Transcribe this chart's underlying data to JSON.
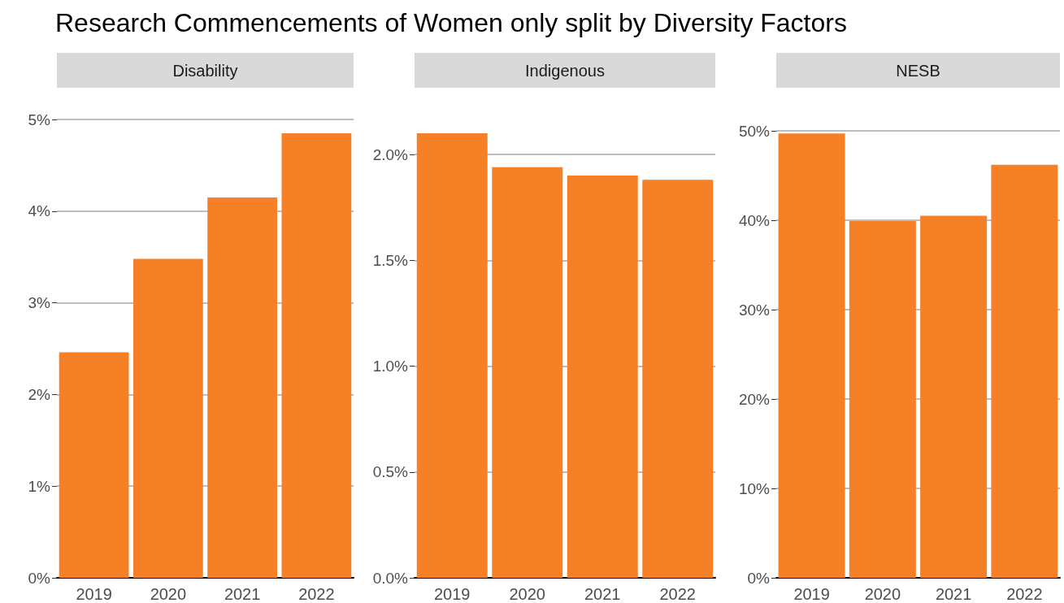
{
  "chart_data": [
    {
      "type": "bar",
      "title": "Research Commencements of Women only split by Diversity Factors",
      "subtitle": "Disability",
      "categories": [
        "2019",
        "2020",
        "2021",
        "2022"
      ],
      "values": [
        2.46,
        3.48,
        4.15,
        4.85
      ],
      "color": "#f58025",
      "ylim": [
        0,
        5
      ],
      "yticks": [
        {
          "value": 0,
          "label": "0%"
        },
        {
          "value": 1,
          "label": "1%"
        },
        {
          "value": 2,
          "label": "2%"
        },
        {
          "value": 3,
          "label": "3%"
        },
        {
          "value": 4,
          "label": "4%"
        },
        {
          "value": 5,
          "label": "5%"
        }
      ],
      "grid": "y"
    },
    {
      "type": "bar",
      "subtitle": "Indigenous",
      "categories": [
        "2019",
        "2020",
        "2021",
        "2022"
      ],
      "values": [
        2.1,
        1.94,
        1.9,
        1.88
      ],
      "color": "#f58025",
      "ylim": [
        0,
        2.1
      ],
      "yticks": [
        {
          "value": 0,
          "label": "0.0%"
        },
        {
          "value": 0.5,
          "label": "0.5%"
        },
        {
          "value": 1,
          "label": "1.0%"
        },
        {
          "value": 1.5,
          "label": "1.5%"
        },
        {
          "value": 2,
          "label": "2.0%"
        }
      ],
      "grid": "y"
    },
    {
      "type": "bar",
      "subtitle": "NESB",
      "categories": [
        "2019",
        "2020",
        "2021",
        "2022"
      ],
      "values": [
        49.7,
        39.9,
        40.5,
        46.2
      ],
      "color": "#f58025",
      "ylim": [
        0,
        50
      ],
      "yticks": [
        {
          "value": 0,
          "label": "0%"
        },
        {
          "value": 10,
          "label": "10%"
        },
        {
          "value": 20,
          "label": "20%"
        },
        {
          "value": 30,
          "label": "30%"
        },
        {
          "value": 40,
          "label": "40%"
        },
        {
          "value": 50,
          "label": "50%"
        }
      ],
      "grid": "y"
    }
  ]
}
